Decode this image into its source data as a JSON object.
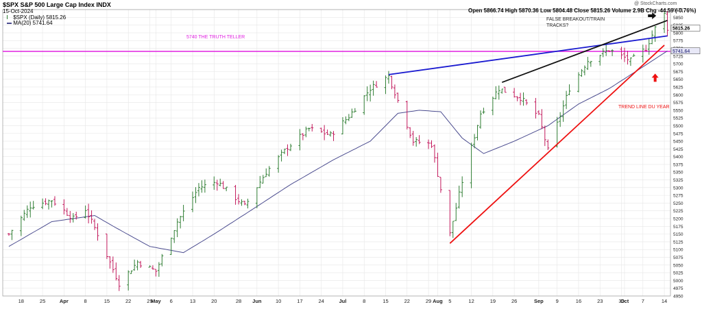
{
  "header": {
    "symbol_line": "$SPX S&P 500 Large Cap Index INDX",
    "date": "15-Oct-2024",
    "legend_price": "$SPX (Daily) 5815.26",
    "legend_ma": "MA(20) 5741.64",
    "ohlc": "Open 5866.74  High 5870.36  Low 5804.48  Close 5815.26  Volume 2.9B  Chg -44.59 (-0.76%)",
    "credit": "@ StockCharts.com"
  },
  "annotations": {
    "truth_teller": "5740 THE TRUTH TELLER",
    "false_breakout": "FALSE BREAKOUT/TRAIN TRACKS?",
    "trend_line": "TREND LINE DU YEAR"
  },
  "price_tags": {
    "last": "5815.26",
    "ma": "5741.64"
  },
  "colors": {
    "up_bar": "#2e7d32",
    "down_bar": "#c2185b",
    "ma_line": "#4b4c8f",
    "magenta": "#e020e0",
    "blue_trend": "#1a1ad0",
    "black_trend": "#111111",
    "red_trend": "#ee1111",
    "grid": "#e6e6e6"
  },
  "chart_data": {
    "type": "ohlc",
    "y_axis": {
      "min": 4950,
      "max": 5875,
      "step": 25,
      "side": "right"
    },
    "x_tick_labels": [
      {
        "label": "18",
        "date": "2024-03-18"
      },
      {
        "label": "25",
        "date": "2024-03-25"
      },
      {
        "label": "Apr",
        "date": "2024-04-01"
      },
      {
        "label": "8",
        "date": "2024-04-08"
      },
      {
        "label": "15",
        "date": "2024-04-15"
      },
      {
        "label": "22",
        "date": "2024-04-22"
      },
      {
        "label": "29",
        "date": "2024-04-29"
      },
      {
        "label": "May",
        "date": "2024-05-01"
      },
      {
        "label": "6",
        "date": "2024-05-06"
      },
      {
        "label": "13",
        "date": "2024-05-13"
      },
      {
        "label": "20",
        "date": "2024-05-20"
      },
      {
        "label": "28",
        "date": "2024-05-28"
      },
      {
        "label": "Jun",
        "date": "2024-06-03"
      },
      {
        "label": "10",
        "date": "2024-06-10"
      },
      {
        "label": "17",
        "date": "2024-06-17"
      },
      {
        "label": "24",
        "date": "2024-06-24"
      },
      {
        "label": "Jul",
        "date": "2024-07-01"
      },
      {
        "label": "8",
        "date": "2024-07-08"
      },
      {
        "label": "15",
        "date": "2024-07-15"
      },
      {
        "label": "22",
        "date": "2024-07-22"
      },
      {
        "label": "29",
        "date": "2024-07-29"
      },
      {
        "label": "Aug",
        "date": "2024-08-01"
      },
      {
        "label": "5",
        "date": "2024-08-05"
      },
      {
        "label": "12",
        "date": "2024-08-12"
      },
      {
        "label": "19",
        "date": "2024-08-19"
      },
      {
        "label": "26",
        "date": "2024-08-26"
      },
      {
        "label": "Sep",
        "date": "2024-09-03"
      },
      {
        "label": "9",
        "date": "2024-09-09"
      },
      {
        "label": "16",
        "date": "2024-09-16"
      },
      {
        "label": "23",
        "date": "2024-09-23"
      },
      {
        "label": "30",
        "date": "2024-09-30"
      },
      {
        "label": "Oct",
        "date": "2024-10-01"
      },
      {
        "label": "7",
        "date": "2024-10-07"
      },
      {
        "label": "14",
        "date": "2024-10-14"
      }
    ],
    "price_keypoints": [
      [
        "2024-03-14",
        5150
      ],
      [
        "2024-03-21",
        5240
      ],
      [
        "2024-03-28",
        5260
      ],
      [
        "2024-04-04",
        5200
      ],
      [
        "2024-04-08",
        5230
      ],
      [
        "2024-04-12",
        5150
      ],
      [
        "2024-04-19",
        4990
      ],
      [
        "2024-04-25",
        5060
      ],
      [
        "2024-05-01",
        5030
      ],
      [
        "2024-05-08",
        5190
      ],
      [
        "2024-05-15",
        5300
      ],
      [
        "2024-05-21",
        5320
      ],
      [
        "2024-05-30",
        5240
      ],
      [
        "2024-06-06",
        5350
      ],
      [
        "2024-06-13",
        5430
      ],
      [
        "2024-06-20",
        5490
      ],
      [
        "2024-06-27",
        5470
      ],
      [
        "2024-07-03",
        5530
      ],
      [
        "2024-07-10",
        5620
      ],
      [
        "2024-07-16",
        5660
      ],
      [
        "2024-07-24",
        5450
      ],
      [
        "2024-07-30",
        5440
      ],
      [
        "2024-08-05",
        5150
      ],
      [
        "2024-08-09",
        5320
      ],
      [
        "2024-08-15",
        5540
      ],
      [
        "2024-08-21",
        5620
      ],
      [
        "2024-08-28",
        5590
      ],
      [
        "2024-09-03",
        5530
      ],
      [
        "2024-09-06",
        5420
      ],
      [
        "2024-09-13",
        5620
      ],
      [
        "2024-09-19",
        5710
      ],
      [
        "2024-09-26",
        5745
      ],
      [
        "2024-10-03",
        5710
      ],
      [
        "2024-10-08",
        5750
      ],
      [
        "2024-10-11",
        5815
      ],
      [
        "2024-10-14",
        5860
      ],
      [
        "2024-10-15",
        5815
      ]
    ],
    "ma20_keypoints": [
      [
        "2024-03-14",
        5110
      ],
      [
        "2024-03-28",
        5190
      ],
      [
        "2024-04-11",
        5210
      ],
      [
        "2024-04-18",
        5170
      ],
      [
        "2024-04-29",
        5110
      ],
      [
        "2024-05-10",
        5090
      ],
      [
        "2024-05-20",
        5150
      ],
      [
        "2024-05-31",
        5220
      ],
      [
        "2024-06-14",
        5310
      ],
      [
        "2024-06-28",
        5390
      ],
      [
        "2024-07-10",
        5450
      ],
      [
        "2024-07-19",
        5540
      ],
      [
        "2024-07-26",
        5550
      ],
      [
        "2024-08-02",
        5545
      ],
      [
        "2024-08-09",
        5460
      ],
      [
        "2024-08-16",
        5410
      ],
      [
        "2024-08-26",
        5450
      ],
      [
        "2024-09-06",
        5500
      ],
      [
        "2024-09-16",
        5570
      ],
      [
        "2024-09-26",
        5620
      ],
      [
        "2024-10-07",
        5690
      ],
      [
        "2024-10-15",
        5741.64
      ]
    ],
    "horizontal_lines": [
      {
        "name": "truth-teller-line",
        "value": 5740,
        "color": "magenta"
      }
    ],
    "trend_lines": [
      {
        "name": "blue-trend-line",
        "from": [
          "2024-07-16",
          5665
        ],
        "to": [
          "2024-10-15",
          5790
        ],
        "color": "blue_trend"
      },
      {
        "name": "black-trend-line",
        "from": [
          "2024-08-22",
          5640
        ],
        "to": [
          "2024-10-15",
          5840
        ],
        "color": "black_trend"
      },
      {
        "name": "red-trend-line",
        "from": [
          "2024-08-05",
          5120
        ],
        "to": [
          "2024-10-14",
          5760
        ],
        "color": "red_trend"
      }
    ],
    "arrows": [
      {
        "name": "black-right-arrow",
        "date": "2024-10-10",
        "value": 5855,
        "direction": "right",
        "color": "black_trend"
      },
      {
        "name": "red-up-arrow",
        "date": "2024-10-11",
        "value": 5655,
        "direction": "up",
        "color": "red_trend"
      }
    ]
  }
}
